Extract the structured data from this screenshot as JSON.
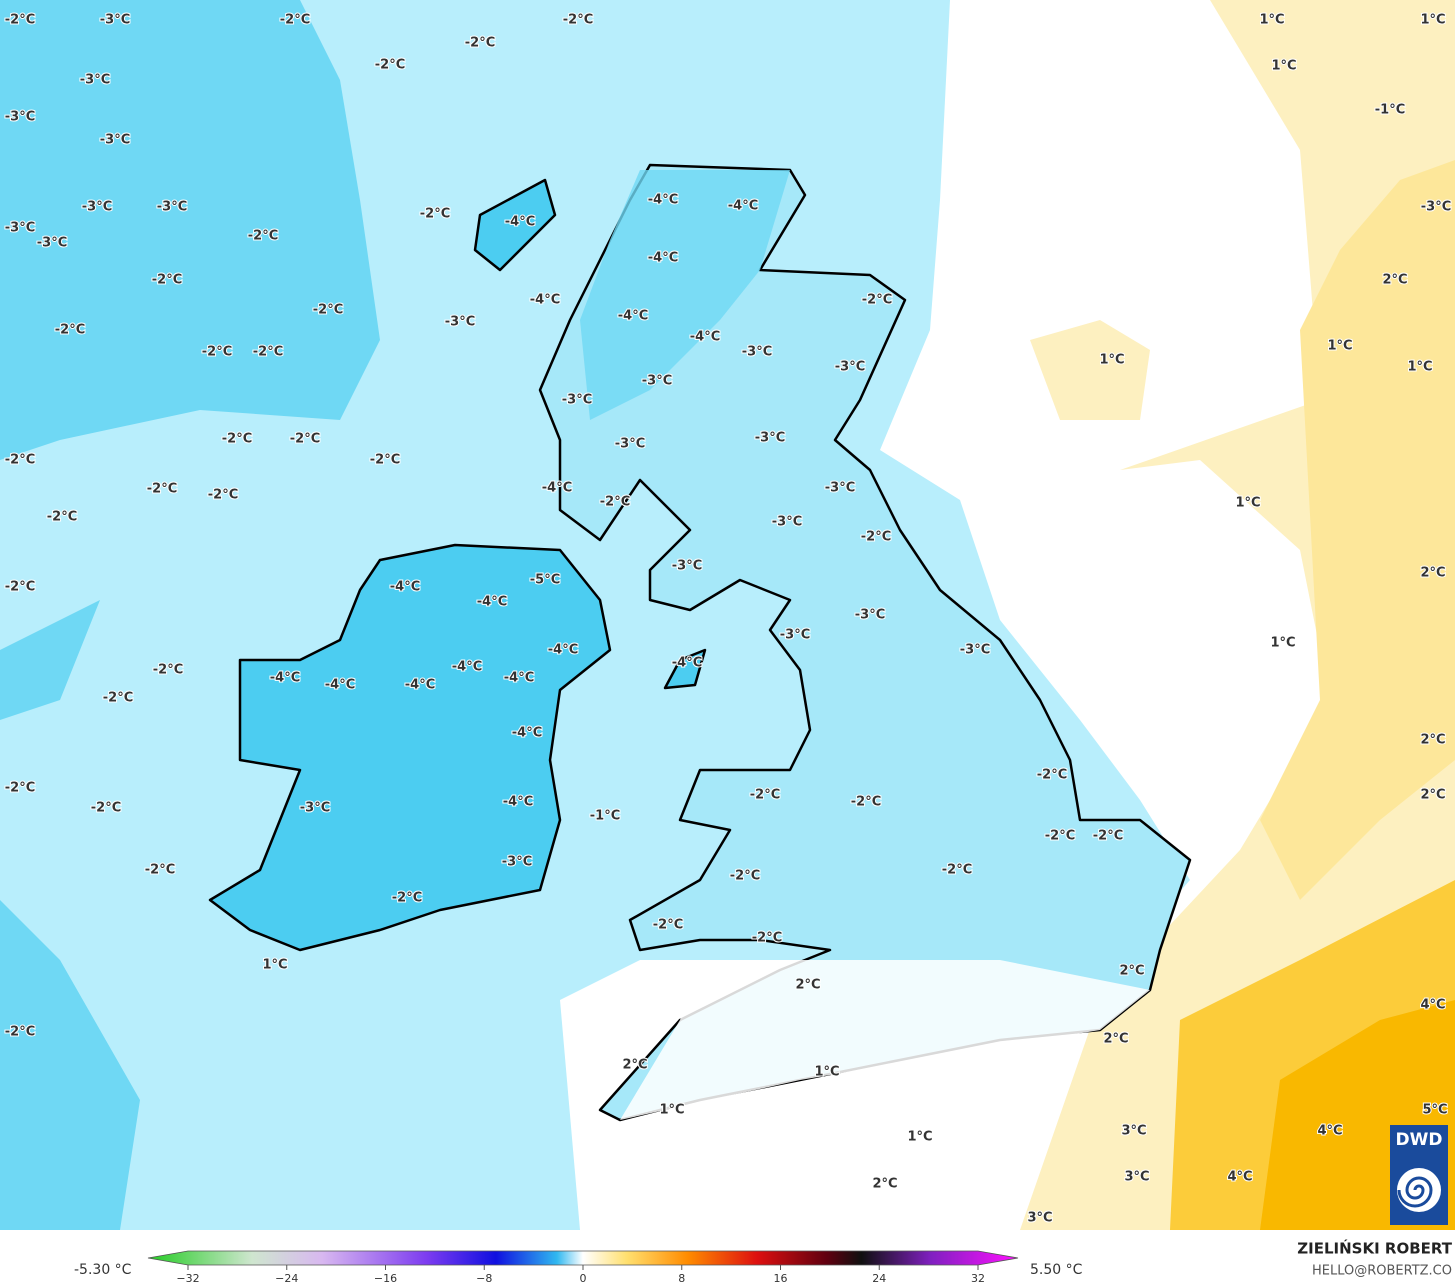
{
  "map": {
    "labels": [
      "-2°C",
      "-3°C",
      "-2°C",
      "-2°C",
      "-2°C",
      "-2°C",
      "-3°C",
      "-3°C",
      "-3°C",
      "-3°C",
      "-3°C",
      "-3°C",
      "-3°C",
      "-2°C",
      "-2°C",
      "-2°C",
      "-2°C",
      "-2°C",
      "-2°C",
      "-2°C",
      "-2°C",
      "-2°C",
      "-2°C",
      "-2°C",
      "-2°C",
      "-2°C",
      "-2°C",
      "-2°C",
      "-2°C",
      "-2°C",
      "-2°C",
      "-2°C",
      "-2°C",
      "-2°C",
      "-4°C",
      "-4°C",
      "-4°C",
      "-4°C",
      "-4°C",
      "-3°C",
      "-4°C",
      "-2°C",
      "-4°C",
      "-3°C",
      "-3°C",
      "-3°C",
      "-3°C",
      "-3°C",
      "-3°C",
      "-4°C",
      "-2°C",
      "-3°C",
      "-3°C",
      "-2°C",
      "-3°C",
      "-4°C",
      "-5°C",
      "-4°C",
      "-3°C",
      "-3°C",
      "-3°C",
      "-4°C",
      "-4°C",
      "-4°C",
      "-4°C",
      "-4°C",
      "-4°C",
      "-4°C",
      "-4°C",
      "-1°C",
      "-3°C",
      "-4°C",
      "-3°C",
      "-2°C",
      "-2°C",
      "-2°C",
      "-2°C",
      "-2°C",
      "-2°C",
      "-2°C",
      "-2°C",
      "-2°C",
      "-2°C",
      "1°C",
      "2°C",
      "2°C",
      "2°C",
      "2°C",
      "1°C",
      "1°C",
      "1°C",
      "2°C",
      "3°C",
      "3°C",
      "3°C",
      "4°C",
      "4°C",
      "4°C",
      "5°C",
      "1°C",
      "1°C",
      "1°C",
      "-1°C",
      "-3°C",
      "2°C",
      "1°C",
      "1°C",
      "1°C",
      "1°C",
      "2°C",
      "1°C",
      "2°C",
      "2°C"
    ]
  },
  "legend": {
    "min": "-5.30 °C",
    "max": "5.50 °C",
    "ticks": [
      {
        "value": -32,
        "label": "−32"
      },
      {
        "value": -24,
        "label": "−24"
      },
      {
        "value": -16,
        "label": "−16"
      },
      {
        "value": -8,
        "label": "−8"
      },
      0,
      8,
      16,
      24,
      32
    ]
  },
  "credits": {
    "author": "ZIELIŃSKI ROBERT",
    "email": "HELLO@ROBERTZ.CO",
    "logo": "DWD"
  }
}
